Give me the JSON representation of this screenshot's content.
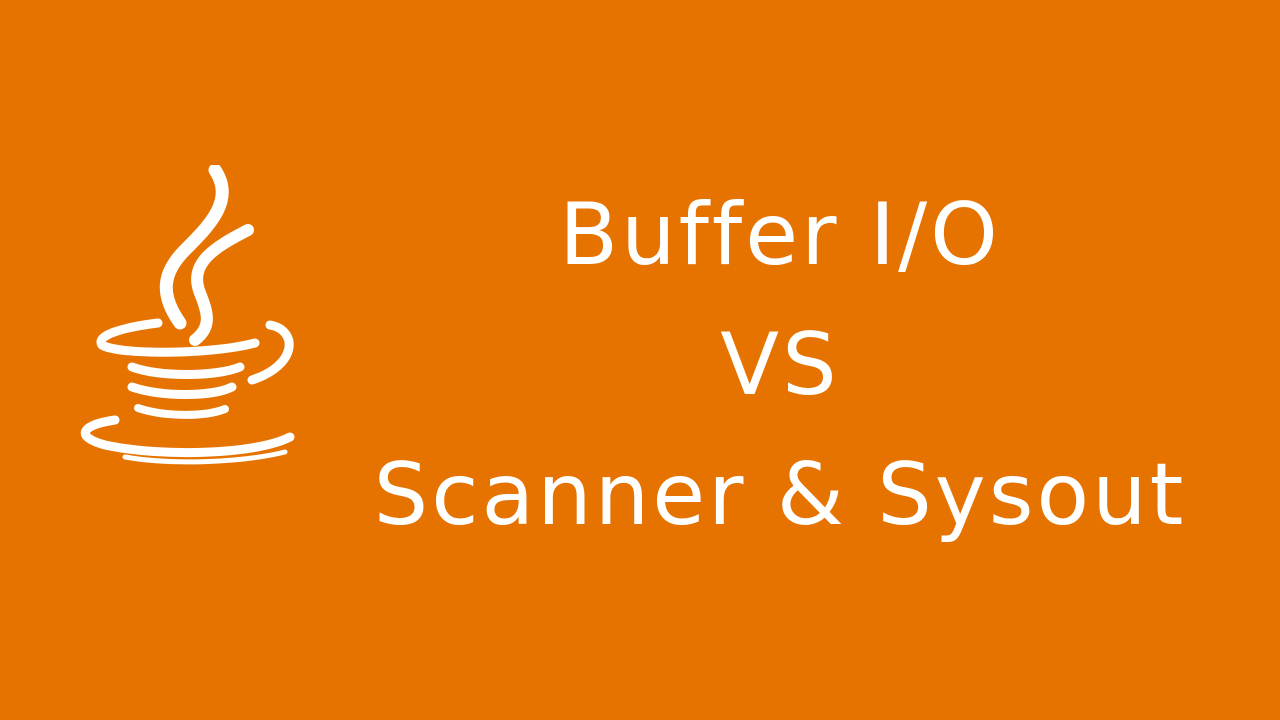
{
  "colors": {
    "background": "#e67300",
    "foreground": "#ffffff"
  },
  "logo": {
    "icon": "java-coffee-cup-icon"
  },
  "title": {
    "line1": "Buffer I/O",
    "line2": "VS",
    "line3": "Scanner & Sysout"
  }
}
